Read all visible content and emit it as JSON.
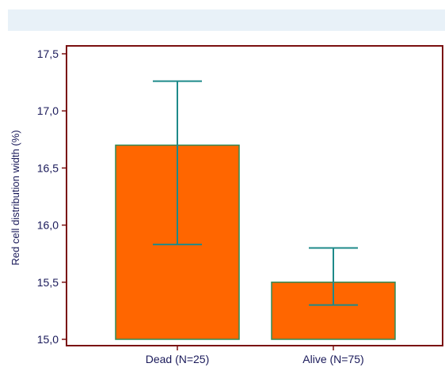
{
  "chart_data": {
    "type": "bar",
    "title": "",
    "xlabel": "",
    "ylabel": "Red cell distribution width (%)",
    "ylim": [
      15.0,
      17.5
    ],
    "yticks": [
      "15,0",
      "15,5",
      "16,0",
      "16,5",
      "17,0",
      "17,5"
    ],
    "yticks_values": [
      15.0,
      15.5,
      16.0,
      16.5,
      17.0,
      17.5
    ],
    "categories": [
      "Dead (N=25)",
      "Alive (N=75)"
    ],
    "values": [
      16.7,
      15.5
    ],
    "error_low": [
      15.83,
      15.3
    ],
    "error_high": [
      17.26,
      15.8
    ],
    "grid": false,
    "colors": {
      "bar_fill": "#ff6600",
      "bar_stroke": "#2e8b57",
      "error_bar": "#1e8a8a",
      "frame": "#7a1010",
      "text": "#1a1a5a",
      "band": "#e8f1f8"
    }
  }
}
